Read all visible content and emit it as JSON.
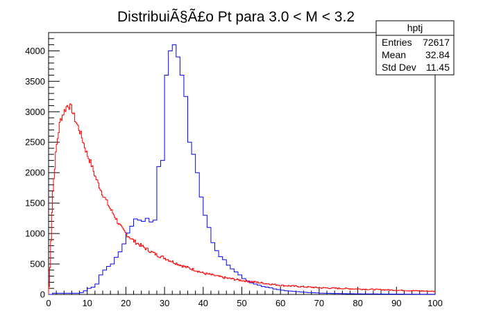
{
  "chart_data": {
    "type": "line",
    "title": "DistribuiÃ§Ã£o Pt para 3.0 < M < 3.2",
    "xlabel": "",
    "ylabel": "",
    "xlim": [
      0,
      100
    ],
    "ylim": [
      0,
      4300
    ],
    "x_ticks": [
      0,
      10,
      20,
      30,
      40,
      50,
      60,
      70,
      80,
      90,
      100
    ],
    "y_ticks": [
      0,
      500,
      1000,
      1500,
      2000,
      2500,
      3000,
      3500,
      4000
    ],
    "grid": false,
    "legend": null,
    "stats_box": {
      "name": "hptj",
      "rows": [
        {
          "label": "Entries",
          "value": "72617"
        },
        {
          "label": "Mean",
          "value": "32.84"
        },
        {
          "label": "Std Dev",
          "value": "11.45"
        }
      ]
    },
    "series": [
      {
        "color": "#0000ff",
        "style": "step",
        "bin_width": 1,
        "x_start": 0,
        "values": [
          0,
          20,
          20,
          20,
          20,
          20,
          20,
          20,
          30,
          60,
          100,
          120,
          170,
          320,
          400,
          460,
          500,
          610,
          700,
          830,
          1010,
          1120,
          1240,
          1220,
          1200,
          1250,
          1190,
          1220,
          2100,
          2200,
          3600,
          4000,
          4100,
          3900,
          3600,
          3250,
          2500,
          2300,
          2000,
          1600,
          1300,
          1100,
          850,
          720,
          620,
          570,
          480,
          420,
          370,
          320,
          260,
          220,
          190,
          170,
          150,
          130,
          120,
          110,
          90,
          80,
          70,
          60,
          55,
          50,
          45,
          40,
          35,
          30,
          28,
          25,
          22,
          20,
          18,
          16,
          15,
          14,
          13,
          12,
          11,
          10,
          10,
          9,
          9,
          8,
          8,
          7,
          7,
          6,
          6,
          5,
          5,
          5,
          4,
          4,
          4,
          3,
          3,
          3,
          3,
          3
        ]
      },
      {
        "color": "#ff0000",
        "style": "step",
        "bin_width": 0.25,
        "x_start": 0,
        "points": [
          [
            0,
            0
          ],
          [
            0.3,
            300
          ],
          [
            1,
            1600
          ],
          [
            2,
            2400
          ],
          [
            3,
            2850
          ],
          [
            4,
            3000
          ],
          [
            5,
            3120
          ],
          [
            6,
            3050
          ],
          [
            7,
            2850
          ],
          [
            8,
            2700
          ],
          [
            9,
            2500
          ],
          [
            10,
            2300
          ],
          [
            11,
            2150
          ],
          [
            12,
            1950
          ],
          [
            13,
            1800
          ],
          [
            14,
            1650
          ],
          [
            15,
            1530
          ],
          [
            16,
            1400
          ],
          [
            17,
            1300
          ],
          [
            18,
            1180
          ],
          [
            19,
            1080
          ],
          [
            20,
            1000
          ],
          [
            22,
            880
          ],
          [
            24,
            800
          ],
          [
            26,
            720
          ],
          [
            28,
            650
          ],
          [
            30,
            600
          ],
          [
            32,
            540
          ],
          [
            35,
            460
          ],
          [
            38,
            400
          ],
          [
            40,
            350
          ],
          [
            45,
            280
          ],
          [
            50,
            230
          ],
          [
            55,
            190
          ],
          [
            60,
            150
          ],
          [
            65,
            130
          ],
          [
            70,
            110
          ],
          [
            75,
            100
          ],
          [
            80,
            90
          ],
          [
            85,
            80
          ],
          [
            90,
            70
          ],
          [
            95,
            60
          ],
          [
            100,
            50
          ]
        ]
      }
    ]
  }
}
